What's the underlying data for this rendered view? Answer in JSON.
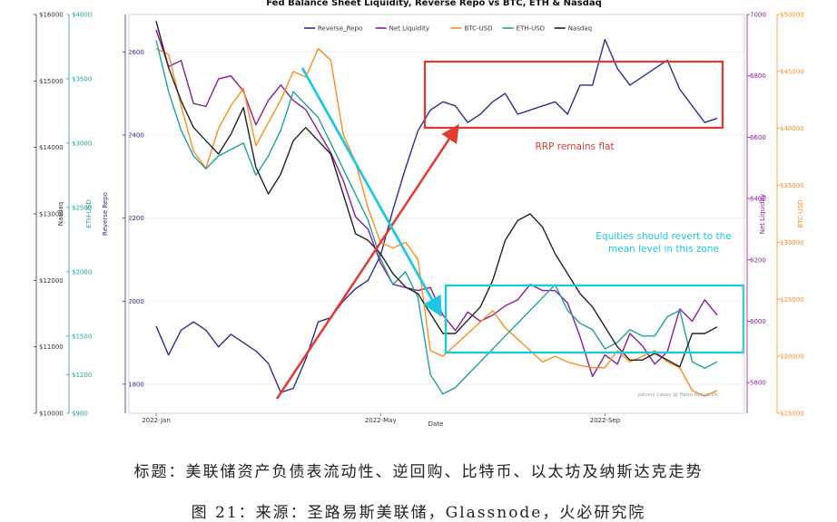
{
  "chart_data": {
    "type": "line",
    "title": "Fed Balance Sheet Liquidity, Reverse Repo vs BTC, ETH & Nasdaq",
    "xlabel": "Date",
    "x_ticks": [
      "2022-Jan",
      "2022-May",
      "2022-Sep"
    ],
    "x_range_index": [
      0,
      45
    ],
    "grid": true,
    "legend_position": "top-center",
    "watermark": "Johnny Lacey @ Hedo Research",
    "axes": [
      {
        "id": "nasdaq",
        "label": "Nasdaq",
        "side": "left",
        "color": "#333333",
        "range": [
          10000,
          16000
        ],
        "ticks": [
          "$10000",
          "$11000",
          "$12000",
          "$13000",
          "$14000",
          "$15000",
          "$16000"
        ]
      },
      {
        "id": "eth",
        "label": "ETH-USD",
        "side": "left",
        "color": "#20a0a0",
        "range": [
          900,
          4000
        ],
        "ticks": [
          "$900",
          "$1200",
          "$1500",
          "$2000",
          "$2500",
          "$3000",
          "$3500",
          "$4000"
        ]
      },
      {
        "id": "rrp",
        "label": "Reverse Repo",
        "side": "left",
        "color": "#2a2f8f",
        "range": [
          1730,
          2690
        ],
        "ticks": [
          "1800",
          "2000",
          "2200",
          "2400",
          "2600"
        ]
      },
      {
        "id": "netliq",
        "label": "Net Liquidity",
        "side": "right",
        "color": "#8b1a9c",
        "range": [
          5700,
          7000
        ],
        "ticks": [
          "5800",
          "6000",
          "6200",
          "6400",
          "6600",
          "6800",
          "7000"
        ]
      },
      {
        "id": "btc",
        "label": "BTC-USD",
        "side": "right",
        "color": "#ff8c1a",
        "range": [
          15000,
          50000
        ],
        "ticks": [
          "$15000",
          "$20000",
          "$25000",
          "$30000",
          "$35000",
          "$40000",
          "$45000",
          "$50000"
        ]
      }
    ],
    "series": [
      {
        "name": "Reverse_Repo",
        "axis": "rrp",
        "color": "#2a2f8f",
        "values": [
          1940,
          1870,
          1930,
          1950,
          1930,
          1890,
          1920,
          1900,
          1880,
          1850,
          1780,
          1790,
          1860,
          1950,
          1960,
          2000,
          2030,
          2050,
          2110,
          2220,
          2320,
          2410,
          2460,
          2480,
          2470,
          2430,
          2450,
          2480,
          2500,
          2450,
          2460,
          2470,
          2480,
          2450,
          2520,
          2520,
          2630,
          2560,
          2520,
          2540,
          2560,
          2580,
          2510,
          2470,
          2430,
          2440
        ]
      },
      {
        "name": "Net Liquidity",
        "axis": "netliq",
        "color": "#8b1a9c",
        "values": [
          6950,
          6830,
          6850,
          6710,
          6700,
          6790,
          6800,
          6750,
          6640,
          6720,
          6770,
          6720,
          6690,
          6620,
          6550,
          6460,
          6340,
          6300,
          6190,
          6120,
          6110,
          6100,
          6110,
          6020,
          5970,
          6030,
          6000,
          6020,
          6050,
          6070,
          6120,
          6100,
          6100,
          6060,
          5950,
          5820,
          5890,
          5860,
          5960,
          5920,
          5860,
          5900,
          6040,
          6000,
          6070,
          6020
        ]
      },
      {
        "name": "BTC-USD",
        "axis": "btc",
        "color": "#ff8c1a",
        "values": [
          47000,
          46500,
          42000,
          38000,
          36500,
          40000,
          42000,
          43500,
          38500,
          40500,
          42500,
          45000,
          44500,
          47000,
          46000,
          39500,
          37000,
          33000,
          30000,
          29500,
          30000,
          28500,
          20500,
          20000,
          21000,
          22000,
          23000,
          24000,
          22500,
          21500,
          20500,
          19500,
          20000,
          19500,
          19200,
          19000,
          19000,
          20500,
          19500,
          20000,
          20500,
          19500,
          19000,
          17000,
          16500,
          17000
        ]
      },
      {
        "name": "ETH-USD",
        "axis": "eth",
        "color": "#20a0a0",
        "values": [
          3800,
          3400,
          3100,
          2900,
          2800,
          2900,
          2950,
          3000,
          2750,
          2900,
          3100,
          3400,
          3300,
          3200,
          3000,
          2800,
          2600,
          2400,
          2100,
          1900,
          2000,
          1800,
          1200,
          1050,
          1100,
          1200,
          1300,
          1400,
          1500,
          1600,
          1700,
          1800,
          1900,
          1700,
          1600,
          1550,
          1400,
          1450,
          1550,
          1500,
          1500,
          1650,
          1700,
          1300,
          1250,
          1300
        ]
      },
      {
        "name": "Nasdaq",
        "axis": "nasdaq",
        "color": "#222222",
        "values": [
          15900,
          15200,
          14700,
          14300,
          14100,
          13900,
          14200,
          14600,
          13700,
          13300,
          13600,
          14100,
          14300,
          14100,
          13900,
          13300,
          12700,
          12600,
          12400,
          12100,
          11900,
          11800,
          11500,
          11200,
          11200,
          11400,
          11600,
          12000,
          12600,
          12900,
          13000,
          12800,
          12400,
          12100,
          11800,
          11600,
          11300,
          11000,
          10800,
          10800,
          10900,
          10800,
          10700,
          11200,
          11200,
          11300
        ]
      }
    ],
    "annotations": [
      {
        "text": "RRP remains flat",
        "color": "#e23b2e"
      },
      {
        "text": "Equities should revert to the mean level in this zone",
        "color": "#1ec8e0"
      }
    ]
  },
  "caption": {
    "title": "标题：美联储资产负债表流动性、逆回购、比特币、以太坊及纳斯达克走势",
    "source": "图 21：来源：圣路易斯美联储，Glassnode，火必研究院"
  }
}
